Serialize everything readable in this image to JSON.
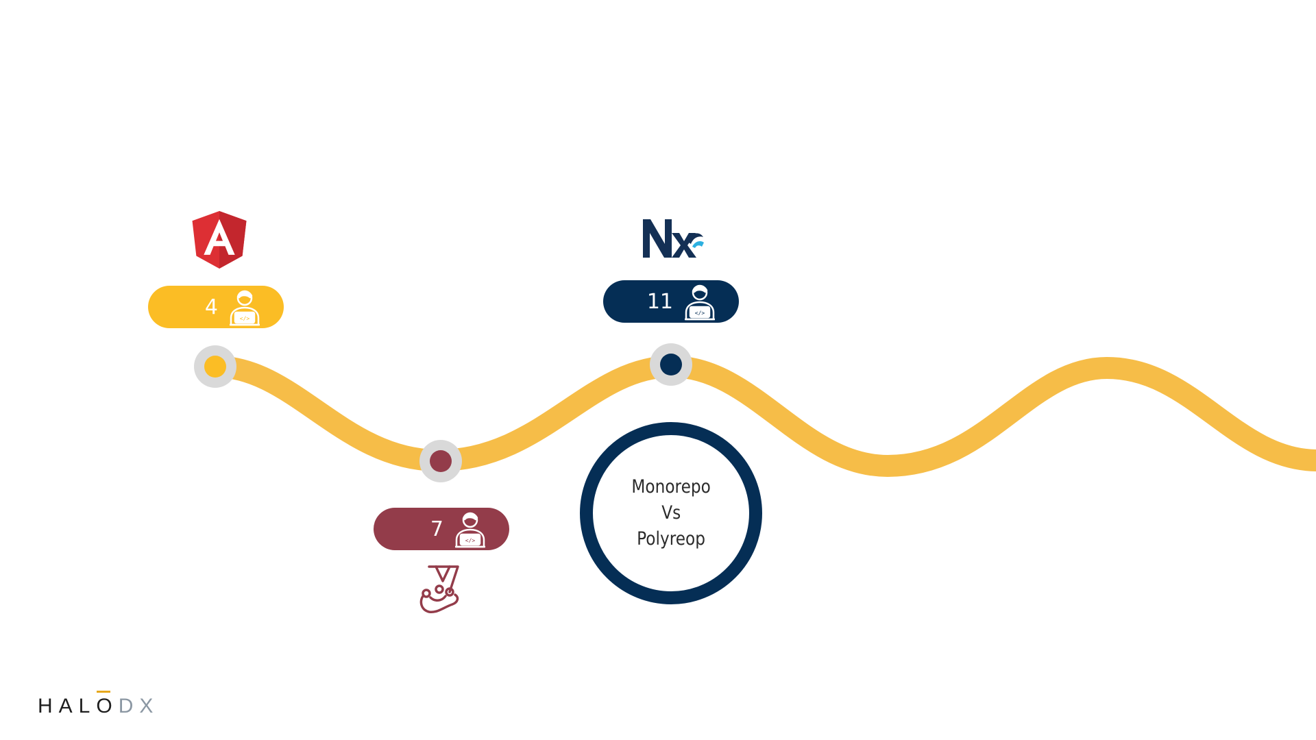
{
  "timeline": {
    "milestones": [
      {
        "id": "angular",
        "logo": "angular-logo",
        "count": "4",
        "color": "#fbbd25"
      },
      {
        "id": "jest",
        "logo": "jest-logo",
        "count": "7",
        "color": "#933c4a"
      },
      {
        "id": "nx",
        "logo": "nx-logo",
        "count": "11",
        "color": "#052e55"
      }
    ],
    "path_color": "#f6bd48",
    "node_ring_color": "#d9d9d9",
    "person_icon": "developer-laptop-icon"
  },
  "center": {
    "lines": [
      "Monorepo",
      "Vs",
      "Polyreop"
    ],
    "ring_color": "#052e55"
  },
  "brand": {
    "part_a_start": "HAL",
    "part_a_o": "O",
    "part_b": "DX",
    "accent_color": "#e6a81d"
  }
}
